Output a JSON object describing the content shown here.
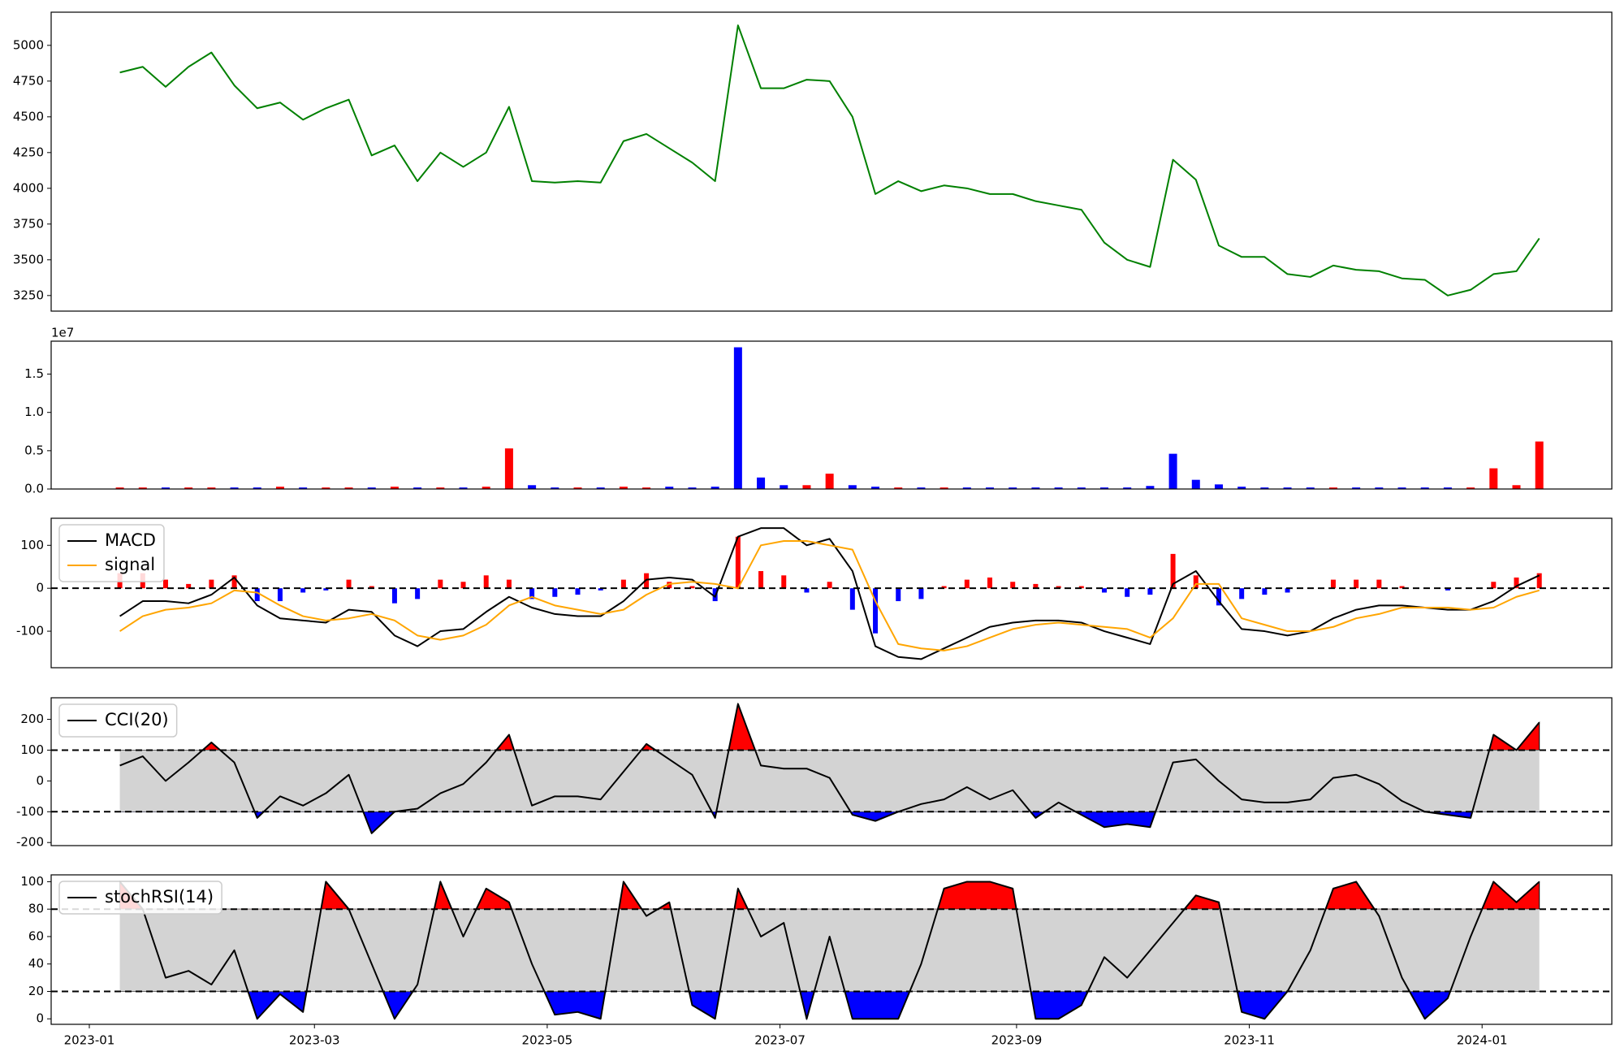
{
  "chart_data": [
    {
      "type": "line",
      "color": "green",
      "x": [
        8,
        14,
        20,
        26,
        32,
        38,
        44,
        50,
        56,
        62,
        68,
        74,
        80,
        86,
        92,
        98,
        104,
        110,
        116,
        122,
        128,
        134,
        140,
        146,
        152,
        158,
        164,
        170,
        176,
        182,
        188,
        194,
        200,
        206,
        212,
        218,
        224,
        230,
        236,
        242,
        248,
        254,
        260,
        266,
        272,
        278,
        284,
        290,
        296,
        302,
        308,
        314,
        320,
        326,
        332,
        338,
        344,
        350,
        356,
        362,
        368,
        374,
        380
      ],
      "values": [
        4810,
        4850,
        4710,
        4850,
        4950,
        4720,
        4560,
        4600,
        4480,
        4560,
        4620,
        4230,
        4300,
        4050,
        4250,
        4150,
        4250,
        4570,
        4050,
        4040,
        4050,
        4040,
        4330,
        4380,
        4280,
        4180,
        4050,
        5140,
        4700,
        4700,
        4760,
        4750,
        4500,
        3960,
        4050,
        3980,
        4020,
        4000,
        3960,
        3960,
        3910,
        3880,
        3850,
        3620,
        3500,
        3450,
        4200,
        4060,
        3600,
        3520,
        3520,
        3400,
        3380,
        3460,
        3430,
        3420,
        3370,
        3360,
        3250,
        3290,
        3400,
        3420,
        3650
      ],
      "xlim": [
        -10,
        399
      ],
      "ylim": [
        3141,
        5232
      ],
      "yticks": [
        3250,
        3500,
        3750,
        4000,
        4250,
        4500,
        4750,
        5000
      ]
    },
    {
      "type": "bar",
      "offset_label": "1e7",
      "x": [
        8,
        14,
        20,
        26,
        32,
        38,
        44,
        50,
        56,
        62,
        68,
        74,
        80,
        86,
        92,
        98,
        104,
        110,
        116,
        122,
        128,
        134,
        140,
        146,
        152,
        158,
        164,
        170,
        176,
        182,
        188,
        194,
        200,
        206,
        212,
        218,
        224,
        230,
        236,
        242,
        248,
        254,
        260,
        266,
        272,
        278,
        284,
        290,
        296,
        302,
        308,
        314,
        320,
        326,
        332,
        338,
        344,
        350,
        356,
        362,
        368,
        374,
        380
      ],
      "values": [
        0.02,
        0.02,
        0.02,
        0.02,
        0.02,
        0.02,
        0.02,
        0.03,
        0.02,
        0.02,
        0.02,
        0.02,
        0.03,
        0.02,
        0.02,
        0.02,
        0.03,
        0.53,
        0.05,
        0.02,
        0.02,
        0.02,
        0.03,
        0.02,
        0.03,
        0.02,
        0.03,
        1.85,
        0.15,
        0.05,
        0.05,
        0.2,
        0.05,
        0.03,
        0.02,
        0.02,
        0.02,
        0.02,
        0.02,
        0.02,
        0.02,
        0.02,
        0.02,
        0.02,
        0.02,
        0.04,
        0.46,
        0.12,
        0.06,
        0.03,
        0.02,
        0.02,
        0.02,
        0.02,
        0.02,
        0.02,
        0.02,
        0.02,
        0.02,
        0.02,
        0.27,
        0.05,
        0.62
      ],
      "colors": [
        "red",
        "red",
        "blue",
        "red",
        "red",
        "blue",
        "blue",
        "red",
        "blue",
        "red",
        "red",
        "blue",
        "red",
        "blue",
        "red",
        "blue",
        "red",
        "red",
        "blue",
        "blue",
        "red",
        "blue",
        "red",
        "red",
        "blue",
        "blue",
        "blue",
        "blue",
        "blue",
        "blue",
        "red",
        "red",
        "blue",
        "blue",
        "red",
        "blue",
        "red",
        "blue",
        "blue",
        "blue",
        "blue",
        "blue",
        "blue",
        "blue",
        "blue",
        "blue",
        "blue",
        "blue",
        "blue",
        "blue",
        "blue",
        "blue",
        "blue",
        "red",
        "blue",
        "blue",
        "blue",
        "blue",
        "blue",
        "red",
        "red",
        "red",
        "red"
      ],
      "xlim": [
        -10,
        399
      ],
      "ylim": [
        0,
        1.93
      ],
      "yticks": [
        {
          "value": 0,
          "label": "0.0"
        },
        0.5,
        {
          "value": 1,
          "label": "1.0"
        },
        1.5
      ]
    },
    {
      "type": "macd",
      "x": [
        8,
        14,
        20,
        26,
        32,
        38,
        44,
        50,
        56,
        62,
        68,
        74,
        80,
        86,
        92,
        98,
        104,
        110,
        116,
        122,
        128,
        134,
        140,
        146,
        152,
        158,
        164,
        170,
        176,
        182,
        188,
        194,
        200,
        206,
        212,
        218,
        224,
        230,
        236,
        242,
        248,
        254,
        260,
        266,
        272,
        278,
        284,
        290,
        296,
        302,
        308,
        314,
        320,
        326,
        332,
        338,
        344,
        350,
        356,
        362,
        368,
        374,
        380
      ],
      "series": [
        {
          "name": "MACD",
          "color": "black",
          "values": [
            -65,
            -30,
            -30,
            -35,
            -15,
            25,
            -40,
            -70,
            -75,
            -80,
            -50,
            -55,
            -110,
            -135,
            -100,
            -95,
            -55,
            -20,
            -45,
            -60,
            -65,
            -65,
            -30,
            20,
            25,
            20,
            -20,
            120,
            140,
            140,
            100,
            115,
            40,
            -135,
            -160,
            -165,
            -140,
            -115,
            -90,
            -80,
            -75,
            -75,
            -80,
            -100,
            -115,
            -130,
            10,
            40,
            -30,
            -95,
            -100,
            -110,
            -100,
            -70,
            -50,
            -40,
            -40,
            -45,
            -50,
            -50,
            -30,
            5,
            30
          ]
        },
        {
          "name": "signal",
          "color": "orange",
          "values": [
            -100,
            -65,
            -50,
            -45,
            -35,
            -5,
            -10,
            -40,
            -65,
            -75,
            -70,
            -60,
            -75,
            -110,
            -120,
            -110,
            -85,
            -40,
            -20,
            -40,
            -50,
            -60,
            -50,
            -15,
            10,
            15,
            10,
            0,
            100,
            110,
            110,
            100,
            90,
            -30,
            -130,
            -140,
            -145,
            -135,
            -115,
            -95,
            -85,
            -80,
            -85,
            -90,
            -95,
            -115,
            -70,
            10,
            10,
            -70,
            -85,
            -100,
            -100,
            -90,
            -70,
            -60,
            -45,
            -45,
            -45,
            -50,
            -45,
            -20,
            -5
          ]
        }
      ],
      "histogram": {
        "pos_color": "red",
        "neg_color": "blue",
        "values": [
          35,
          35,
          20,
          10,
          20,
          30,
          -30,
          -30,
          -10,
          -5,
          20,
          5,
          -35,
          -25,
          20,
          15,
          30,
          20,
          -25,
          -20,
          -15,
          -5,
          20,
          35,
          15,
          5,
          -30,
          120,
          40,
          30,
          -10,
          15,
          -50,
          -105,
          -30,
          -25,
          5,
          20,
          25,
          15,
          10,
          5,
          5,
          -10,
          -20,
          -15,
          80,
          30,
          -40,
          -25,
          -15,
          -10,
          0,
          20,
          20,
          20,
          5,
          0,
          -5,
          0,
          15,
          25,
          35
        ]
      },
      "hlines": [
        0
      ],
      "xlim": [
        -10,
        399
      ],
      "ylim": [
        -185,
        163
      ],
      "yticks": [
        -100,
        0,
        100
      ]
    },
    {
      "type": "band",
      "x": [
        8,
        14,
        20,
        26,
        32,
        38,
        44,
        50,
        56,
        62,
        68,
        74,
        80,
        86,
        92,
        98,
        104,
        110,
        116,
        122,
        128,
        134,
        140,
        146,
        152,
        158,
        164,
        170,
        176,
        182,
        188,
        194,
        200,
        206,
        212,
        218,
        224,
        230,
        236,
        242,
        248,
        254,
        260,
        266,
        272,
        278,
        284,
        290,
        296,
        302,
        308,
        314,
        320,
        326,
        332,
        338,
        344,
        350,
        356,
        362,
        368,
        374,
        380
      ],
      "series": [
        {
          "name": "CCI(20)",
          "color": "black",
          "values": [
            50,
            80,
            0,
            60,
            125,
            60,
            -120,
            -50,
            -80,
            -40,
            20,
            -170,
            -100,
            -90,
            -40,
            -10,
            60,
            150,
            -80,
            -50,
            -50,
            -60,
            30,
            120,
            70,
            20,
            -120,
            250,
            50,
            40,
            40,
            10,
            -110,
            -130,
            -100,
            -75,
            -60,
            -20,
            -60,
            -30,
            -120,
            -70,
            -110,
            -150,
            -140,
            -150,
            60,
            70,
            0,
            -60,
            -70,
            -70,
            -60,
            10,
            20,
            -10,
            -65,
            -100,
            -110,
            -120,
            150,
            100,
            190
          ]
        }
      ],
      "thresholds": [
        -100,
        100
      ],
      "band_color": "lightgray",
      "above_color": "red",
      "below_color": "blue",
      "xlim": [
        -10,
        399
      ],
      "ylim": [
        -210,
        270
      ],
      "yticks": [
        -200,
        -100,
        0,
        100,
        200
      ]
    },
    {
      "type": "band",
      "x": [
        8,
        14,
        20,
        26,
        32,
        38,
        44,
        50,
        56,
        62,
        68,
        74,
        80,
        86,
        92,
        98,
        104,
        110,
        116,
        122,
        128,
        134,
        140,
        146,
        152,
        158,
        164,
        170,
        176,
        182,
        188,
        194,
        200,
        206,
        212,
        218,
        224,
        230,
        236,
        242,
        248,
        254,
        260,
        266,
        272,
        278,
        284,
        290,
        296,
        302,
        308,
        314,
        320,
        326,
        332,
        338,
        344,
        350,
        356,
        362,
        368,
        374,
        380
      ],
      "series": [
        {
          "name": "stochRSI(14)",
          "color": "black",
          "values": [
            100,
            80,
            30,
            35,
            25,
            50,
            0,
            18,
            5,
            100,
            80,
            40,
            0,
            25,
            100,
            60,
            95,
            85,
            40,
            3,
            5,
            0,
            100,
            75,
            85,
            10,
            0,
            95,
            60,
            70,
            0,
            60,
            0,
            0,
            0,
            40,
            95,
            100,
            100,
            95,
            0,
            0,
            10,
            45,
            30,
            50,
            70,
            90,
            85,
            5,
            0,
            20,
            50,
            95,
            100,
            75,
            30,
            0,
            15,
            60,
            100,
            85,
            100
          ]
        }
      ],
      "thresholds": [
        20,
        80
      ],
      "band_color": "lightgray",
      "above_color": "red",
      "below_color": "blue",
      "xlim": [
        -10,
        399
      ],
      "ylim": [
        -4,
        105
      ],
      "yticks": [
        0,
        20,
        40,
        60,
        80,
        100
      ],
      "xticks": [
        {
          "value": 0,
          "label": "2023-01"
        },
        {
          "value": 59,
          "label": "2023-03"
        },
        {
          "value": 120,
          "label": "2023-05"
        },
        {
          "value": 181,
          "label": "2023-07"
        },
        {
          "value": 243,
          "label": "2023-09"
        },
        {
          "value": 304,
          "label": "2023-11"
        },
        {
          "value": 365,
          "label": "2024-01"
        }
      ]
    }
  ]
}
